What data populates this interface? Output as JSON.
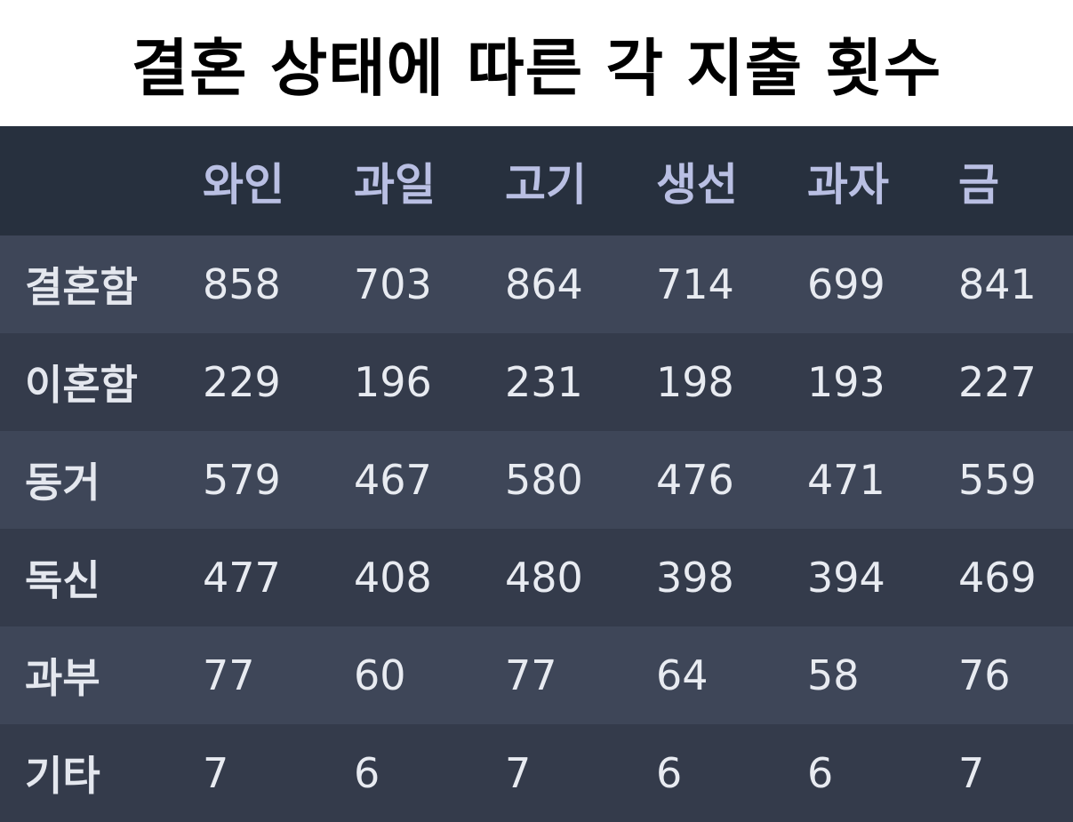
{
  "title": "결혼 상태에 따른 각 지출 횟수",
  "colors": {
    "header_bg": "#27303e",
    "row_bg_light": "#3e4658",
    "row_bg_dark": "#343b4b",
    "header_text": "#b9bfe3",
    "cell_text": "#e8ebf1"
  },
  "chart_data": {
    "type": "table",
    "title": "결혼 상태에 따른 각 지출 횟수",
    "columns": [
      "",
      "와인",
      "과일",
      "고기",
      "생선",
      "과자",
      "금"
    ],
    "rows": [
      {
        "label": "결혼함",
        "values": [
          "858",
          "703",
          "864",
          "714",
          "699",
          "841"
        ]
      },
      {
        "label": "이혼함",
        "values": [
          "229",
          "196",
          "231",
          "198",
          "193",
          "227"
        ]
      },
      {
        "label": "동거",
        "values": [
          "579",
          "467",
          "580",
          "476",
          "471",
          "559"
        ]
      },
      {
        "label": "독신",
        "values": [
          "477",
          "408",
          "480",
          "398",
          "394",
          "469"
        ]
      },
      {
        "label": "과부",
        "values": [
          "77",
          "60",
          "77",
          "64",
          "58",
          "76"
        ]
      },
      {
        "label": "기타",
        "values": [
          "7",
          "6",
          "7",
          "6",
          "6",
          "7"
        ]
      }
    ]
  }
}
